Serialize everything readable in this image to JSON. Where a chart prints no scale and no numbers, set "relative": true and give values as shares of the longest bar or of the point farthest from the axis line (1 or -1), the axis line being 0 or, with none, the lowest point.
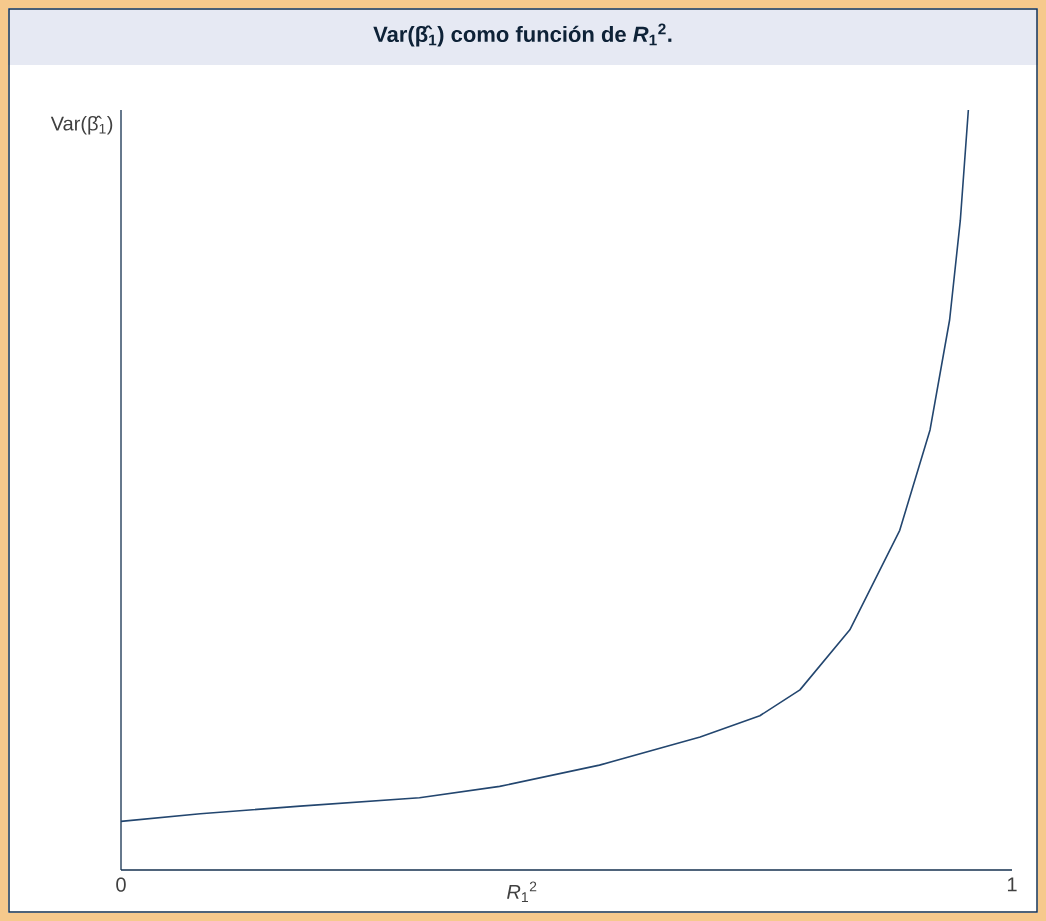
{
  "chart_data": {
    "type": "line",
    "title": "Var(β̂$_{1}$) como función de *R*$_{1}$$^{2}$.",
    "xlabel": "*R*$_{1}$$^{2}$",
    "ylabel": "Var(β̂$_{1}$)",
    "relative": true,
    "xlim": [
      0,
      1
    ],
    "xticks": [
      0,
      1
    ],
    "marker": "none",
    "line_style": "solid",
    "series": [
      {
        "color": "#23466f",
        "x": [
          0,
          0.089,
          0.201,
          0.335,
          0.425,
          0.537,
          0.65,
          0.717,
          0.762,
          0.818,
          0.874,
          0.908,
          0.93,
          0.942,
          0.951
        ],
        "values": [
          0.064,
          0.074,
          0.084,
          0.095,
          0.11,
          0.138,
          0.175,
          0.203,
          0.237,
          0.316,
          0.447,
          0.579,
          0.724,
          0.855,
          1.0
        ]
      }
    ]
  }
}
